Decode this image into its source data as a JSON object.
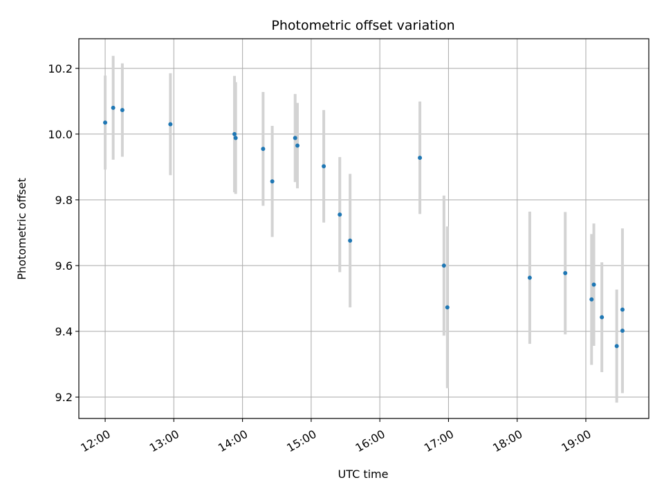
{
  "chart_data": {
    "type": "scatter",
    "title": "Photometric offset variation",
    "xlabel": "UTC time",
    "ylabel": "Photometric offset",
    "x_ticks": [
      "12:00",
      "13:00",
      "14:00",
      "15:00",
      "16:00",
      "17:00",
      "18:00",
      "19:00"
    ],
    "y_ticks": [
      "9.2",
      "9.4",
      "9.6",
      "9.8",
      "10.0",
      "10.2"
    ],
    "xlim": [
      "11:37",
      "19:55"
    ],
    "ylim": [
      9.135,
      10.29
    ],
    "grid": true,
    "marker_color": "#1f77b4",
    "errorbar_color": "#d3d3d3",
    "points": [
      {
        "time": "12:00",
        "y": 10.035,
        "err": 0.143
      },
      {
        "time": "12:07",
        "y": 10.08,
        "err": 0.158
      },
      {
        "time": "12:15",
        "y": 10.073,
        "err": 0.142
      },
      {
        "time": "12:57",
        "y": 10.03,
        "err": 0.155
      },
      {
        "time": "13:53",
        "y": 10.0,
        "err": 0.177
      },
      {
        "time": "13:54",
        "y": 9.988,
        "err": 0.17
      },
      {
        "time": "14:18",
        "y": 9.955,
        "err": 0.173
      },
      {
        "time": "14:26",
        "y": 9.856,
        "err": 0.169
      },
      {
        "time": "14:46",
        "y": 9.988,
        "err": 0.134
      },
      {
        "time": "14:48",
        "y": 9.965,
        "err": 0.13
      },
      {
        "time": "15:11",
        "y": 9.902,
        "err": 0.171
      },
      {
        "time": "15:25",
        "y": 9.755,
        "err": 0.175
      },
      {
        "time": "15:34",
        "y": 9.676,
        "err": 0.203
      },
      {
        "time": "16:35",
        "y": 9.928,
        "err": 0.171
      },
      {
        "time": "16:56",
        "y": 9.6,
        "err": 0.213
      },
      {
        "time": "16:59",
        "y": 9.473,
        "err": 0.246
      },
      {
        "time": "18:11",
        "y": 9.563,
        "err": 0.201
      },
      {
        "time": "18:42",
        "y": 9.577,
        "err": 0.186
      },
      {
        "time": "19:05",
        "y": 9.497,
        "err": 0.199
      },
      {
        "time": "19:07",
        "y": 9.542,
        "err": 0.186
      },
      {
        "time": "19:14",
        "y": 9.443,
        "err": 0.167
      },
      {
        "time": "19:27",
        "y": 9.355,
        "err": 0.172
      },
      {
        "time": "19:32",
        "y": 9.466,
        "err": 0.247
      },
      {
        "time": "19:32",
        "y": 9.402,
        "err": 0.19
      }
    ]
  }
}
